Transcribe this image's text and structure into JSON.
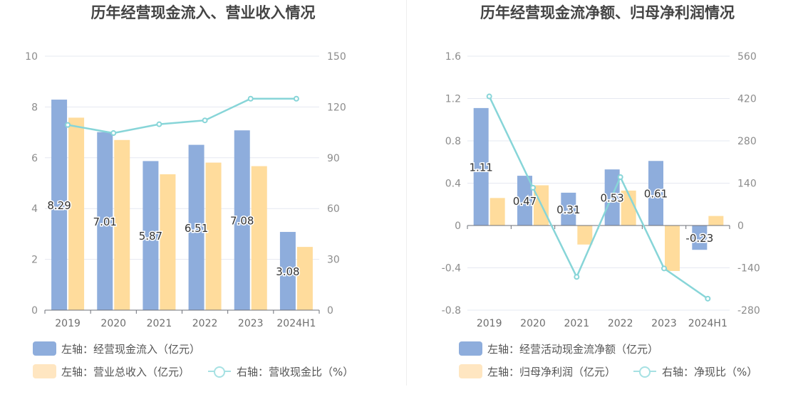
{
  "chart_data": [
    {
      "type": "bar",
      "title": "历年经营现金流入、营业收入情况",
      "categories": [
        "2019",
        "2020",
        "2021",
        "2022",
        "2023",
        "2024H1"
      ],
      "left_axis": {
        "min": 0,
        "max": 10,
        "ticks": [
          "0",
          "2",
          "4",
          "6",
          "8",
          "10"
        ]
      },
      "right_axis": {
        "min": 0,
        "max": 150,
        "ticks": [
          "0",
          "30",
          "60",
          "90",
          "120",
          "150"
        ]
      },
      "series": [
        {
          "name": "左轴：经营现金流入（亿元）",
          "type": "bar",
          "axis": "left",
          "color": "#8eaddc",
          "values": [
            8.29,
            7.01,
            5.87,
            6.51,
            7.08,
            3.08
          ],
          "labels": [
            "8.29",
            "7.01",
            "5.87",
            "6.51",
            "7.08",
            "3.08"
          ]
        },
        {
          "name": "左轴：营业总收入（亿元）",
          "type": "bar",
          "axis": "left",
          "color": "#ffdc9c",
          "values": [
            7.58,
            6.7,
            5.35,
            5.81,
            5.67,
            2.49
          ]
        },
        {
          "name": "右轴：营收现金比（%）",
          "type": "line",
          "axis": "right",
          "color": "#87d5d8",
          "values": [
            109.4,
            104.6,
            109.8,
            112.1,
            124.9,
            124.9
          ]
        }
      ],
      "grid": true,
      "legend_position": "bottom"
    },
    {
      "type": "bar",
      "title": "历年经营现金流净额、归母净利润情况",
      "categories": [
        "2019",
        "2020",
        "2021",
        "2022",
        "2023",
        "2024H1"
      ],
      "left_axis": {
        "min": -0.8,
        "max": 1.6,
        "ticks": [
          "-0.8",
          "-0.4",
          "0",
          "0.4",
          "0.8",
          "1.2",
          "1.6"
        ]
      },
      "right_axis": {
        "min": -280,
        "max": 560,
        "ticks": [
          "-280",
          "-140",
          "0",
          "140",
          "280",
          "420",
          "560"
        ]
      },
      "series": [
        {
          "name": "左轴：经营活动现金流净额（亿元）",
          "type": "bar",
          "axis": "left",
          "color": "#8eaddc",
          "values": [
            1.11,
            0.47,
            0.31,
            0.53,
            0.61,
            -0.23
          ],
          "labels": [
            "1.11",
            "0.47",
            "0.31",
            "0.53",
            "0.61",
            "-0.23"
          ]
        },
        {
          "name": "左轴：归母净利润（亿元）",
          "type": "bar",
          "axis": "left",
          "color": "#ffdc9c",
          "values": [
            0.26,
            0.38,
            -0.18,
            0.33,
            -0.43,
            0.09
          ]
        },
        {
          "name": "右轴：净现比（%）",
          "type": "line",
          "axis": "right",
          "color": "#87d5d8",
          "values": [
            427,
            125,
            -170,
            160,
            -142,
            -242
          ]
        }
      ],
      "grid": true,
      "legend_position": "bottom"
    }
  ]
}
